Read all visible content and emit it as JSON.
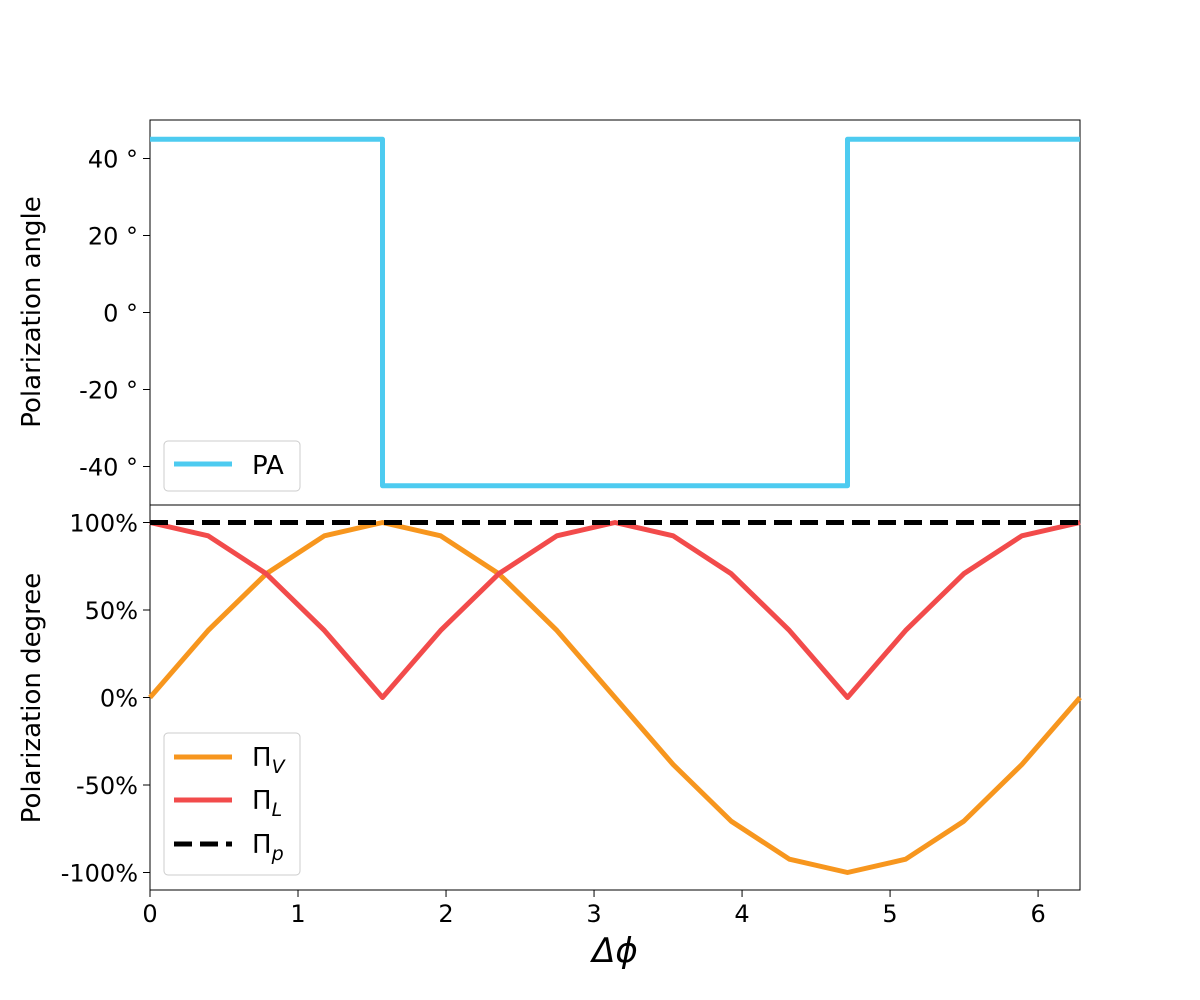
{
  "chart_data": [
    {
      "type": "line",
      "title": "",
      "xlabel": "",
      "ylabel": "Polarization angle",
      "xlim": [
        0,
        6.2832
      ],
      "ylim": [
        -50,
        50
      ],
      "grid": false,
      "legend_position": "lower-left",
      "yticks": [
        {
          "value": 40,
          "label": "40 °"
        },
        {
          "value": 20,
          "label": "20 °"
        },
        {
          "value": 0,
          "label": "0 °"
        },
        {
          "value": -20,
          "label": "-20 °"
        },
        {
          "value": -40,
          "label": "-40 °"
        }
      ],
      "series": [
        {
          "name": "PA",
          "color": "#4dcbf0",
          "style": "solid",
          "x": [
            0,
            1.5708,
            1.5708,
            4.7124,
            4.7124,
            6.2832
          ],
          "y": [
            45,
            45,
            -45,
            -45,
            45,
            45
          ]
        }
      ]
    },
    {
      "type": "line",
      "title": "",
      "xlabel": "Δϕ",
      "ylabel": "Polarization degree",
      "xlim": [
        0,
        6.2832
      ],
      "ylim": [
        -110,
        110
      ],
      "grid": false,
      "legend_position": "lower-left",
      "xticks": [
        {
          "value": 0,
          "label": "0"
        },
        {
          "value": 1,
          "label": "1"
        },
        {
          "value": 2,
          "label": "2"
        },
        {
          "value": 3,
          "label": "3"
        },
        {
          "value": 4,
          "label": "4"
        },
        {
          "value": 5,
          "label": "5"
        },
        {
          "value": 6,
          "label": "6"
        }
      ],
      "yticks": [
        {
          "value": 100,
          "label": "100%"
        },
        {
          "value": 50,
          "label": "50%"
        },
        {
          "value": 0,
          "label": "0%"
        },
        {
          "value": -50,
          "label": "-50%"
        },
        {
          "value": -100,
          "label": "-100%"
        }
      ],
      "series": [
        {
          "name": "Π",
          "subscript": "V",
          "color": "#f7961e",
          "style": "solid",
          "x": [
            0,
            0.3927,
            0.7854,
            1.1781,
            1.5708,
            1.9635,
            2.3562,
            2.7489,
            3.1416,
            3.5343,
            3.927,
            4.3197,
            4.7124,
            5.1051,
            5.4978,
            5.8905,
            6.2832
          ],
          "y": [
            0,
            38.3,
            70.7,
            92.4,
            100,
            92.4,
            70.7,
            38.3,
            0,
            -38.3,
            -70.7,
            -92.4,
            -100,
            -92.4,
            -70.7,
            -38.3,
            0
          ]
        },
        {
          "name": "Π",
          "subscript": "L",
          "color": "#f24b4b",
          "style": "solid",
          "x": [
            0,
            0.3927,
            0.7854,
            1.1781,
            1.5708,
            1.9635,
            2.3562,
            2.7489,
            3.1416,
            3.5343,
            3.927,
            4.3197,
            4.7124,
            5.1051,
            5.4978,
            5.8905,
            6.2832
          ],
          "y": [
            100,
            92.4,
            70.7,
            38.3,
            0,
            38.3,
            70.7,
            92.4,
            100,
            92.4,
            70.7,
            38.3,
            0,
            38.3,
            70.7,
            92.4,
            100
          ]
        },
        {
          "name": "Π",
          "subscript": "p",
          "color": "#000000",
          "style": "dashed",
          "x": [
            0,
            6.2832
          ],
          "y": [
            100,
            100
          ]
        }
      ]
    }
  ]
}
